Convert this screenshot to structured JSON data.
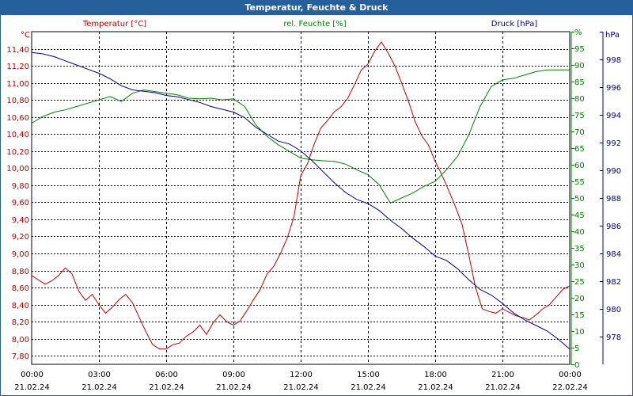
{
  "window": {
    "title": "Temperatur, Feuchte & Druck"
  },
  "colors": {
    "temperature": "#c00000",
    "humidity": "#008000",
    "pressure": "#00008b",
    "grid": "#000000",
    "title_bar": "#26609c"
  },
  "chart_data": {
    "type": "line",
    "title": "Temperatur, Feuchte & Druck",
    "legend_placement": "top",
    "x_range": [
      0,
      24
    ],
    "x_ticks": [
      {
        "time": "00:00",
        "date": "21.02.24"
      },
      {
        "time": "03:00",
        "date": "21.02.24"
      },
      {
        "time": "06:00",
        "date": "21.02.24"
      },
      {
        "time": "09:00",
        "date": "21.02.24"
      },
      {
        "time": "12:00",
        "date": "21.02.24"
      },
      {
        "time": "15:00",
        "date": "21.02.24"
      },
      {
        "time": "18:00",
        "date": "21.02.24"
      },
      {
        "time": "21:00",
        "date": "21.02.24"
      },
      {
        "time": "00:00",
        "date": "22.02.24"
      }
    ],
    "axes": {
      "temperature": {
        "unit": "°C",
        "range": [
          7.7,
          11.6
        ],
        "ticks": [
          "7,80",
          "8,00",
          "8,20",
          "8,40",
          "8,60",
          "8,80",
          "9,00",
          "9,20",
          "9,40",
          "9,60",
          "9,80",
          "10,00",
          "10,20",
          "10,40",
          "10,60",
          "10,80",
          "11,00",
          "11,20",
          "11,40"
        ],
        "tick_values": [
          7.8,
          8.0,
          8.2,
          8.4,
          8.6,
          8.8,
          9.0,
          9.2,
          9.4,
          9.6,
          9.8,
          10.0,
          10.2,
          10.4,
          10.6,
          10.8,
          11.0,
          11.2,
          11.4
        ]
      },
      "humidity": {
        "unit": "%",
        "range": [
          0,
          100
        ],
        "ticks": [
          "0",
          "5",
          "10",
          "15",
          "20",
          "25",
          "30",
          "35",
          "40",
          "45",
          "50",
          "55",
          "60",
          "65",
          "70",
          "75",
          "80",
          "85",
          "90",
          "95",
          "%"
        ],
        "tick_values": [
          0,
          5,
          10,
          15,
          20,
          25,
          30,
          35,
          40,
          45,
          50,
          55,
          60,
          65,
          70,
          75,
          80,
          85,
          90,
          95,
          100
        ]
      },
      "pressure": {
        "unit": "hPa",
        "range": [
          976,
          1000
        ],
        "ticks": [
          "978",
          "980",
          "982",
          "984",
          "986",
          "988",
          "990",
          "992",
          "994",
          "996",
          "998",
          "hPa"
        ],
        "tick_values": [
          978,
          980,
          982,
          984,
          986,
          988,
          990,
          992,
          994,
          996,
          998,
          1000
        ]
      }
    },
    "series": [
      {
        "name": "Temperatur [°C]",
        "axis": "temperature",
        "x": [
          0,
          0.3,
          0.6,
          0.9,
          1.2,
          1.5,
          1.8,
          2.1,
          2.4,
          2.7,
          3.0,
          3.3,
          3.6,
          3.9,
          4.2,
          4.5,
          4.8,
          5.1,
          5.4,
          5.7,
          6.0,
          6.3,
          6.6,
          6.9,
          7.2,
          7.5,
          7.8,
          8.1,
          8.4,
          8.7,
          9.0,
          9.3,
          9.6,
          9.9,
          10.2,
          10.5,
          10.8,
          11.1,
          11.4,
          11.7,
          12.0,
          12.3,
          12.6,
          12.9,
          13.2,
          13.5,
          13.8,
          14.1,
          14.4,
          14.7,
          15.0,
          15.3,
          15.6,
          15.9,
          16.2,
          16.5,
          16.8,
          17.1,
          17.4,
          17.7,
          18.0,
          18.3,
          18.6,
          18.9,
          19.2,
          19.5,
          19.8,
          20.1,
          20.4,
          20.7,
          21.0,
          21.3,
          21.6,
          21.9,
          22.2,
          22.5,
          22.8,
          23.1,
          23.4,
          23.7,
          24.0
        ],
        "values": [
          8.74,
          8.69,
          8.64,
          8.68,
          8.74,
          8.83,
          8.76,
          8.56,
          8.45,
          8.52,
          8.4,
          8.3,
          8.37,
          8.46,
          8.52,
          8.42,
          8.25,
          8.08,
          7.93,
          7.88,
          7.88,
          7.93,
          7.95,
          8.03,
          8.08,
          8.16,
          8.05,
          8.19,
          8.28,
          8.2,
          8.16,
          8.21,
          8.33,
          8.46,
          8.58,
          8.76,
          8.85,
          9.0,
          9.18,
          9.43,
          9.91,
          10.05,
          10.28,
          10.47,
          10.56,
          10.66,
          10.72,
          10.82,
          10.98,
          11.15,
          11.22,
          11.37,
          11.48,
          11.35,
          11.2,
          11.0,
          10.79,
          10.55,
          10.38,
          10.27,
          10.08,
          9.92,
          9.74,
          9.55,
          9.34,
          8.98,
          8.6,
          8.35,
          8.32,
          8.3,
          8.35,
          8.31,
          8.27,
          8.25,
          8.22,
          8.28,
          8.35,
          8.4,
          8.49,
          8.58,
          8.62
        ]
      },
      {
        "name": "rel. Feuchte [%]",
        "axis": "humidity",
        "x": [
          0,
          0.5,
          1.0,
          1.5,
          2.0,
          2.5,
          3.0,
          3.5,
          4.0,
          4.5,
          5.0,
          5.5,
          6.0,
          6.5,
          7.0,
          7.5,
          8.0,
          8.5,
          9.0,
          9.5,
          10.0,
          10.5,
          11.0,
          11.5,
          12.0,
          12.5,
          13.0,
          13.5,
          14.0,
          14.5,
          15.0,
          15.5,
          16.0,
          16.5,
          17.0,
          17.5,
          18.0,
          18.5,
          19.0,
          19.5,
          20.0,
          20.5,
          21.0,
          21.5,
          22.0,
          22.5,
          23.0,
          23.5,
          24.0
        ],
        "values": [
          72.5,
          74.5,
          75.8,
          76.5,
          77.5,
          78.5,
          79.5,
          80.5,
          79.0,
          81.5,
          82.5,
          82.0,
          81.5,
          81.0,
          80.0,
          79.8,
          80.0,
          79.5,
          79.8,
          77.5,
          72.0,
          68.5,
          66.0,
          64.0,
          62.0,
          61.5,
          61.2,
          61.0,
          60.2,
          58.5,
          57.0,
          54.0,
          48.5,
          50.0,
          51.5,
          53.5,
          55.0,
          58.5,
          62.5,
          69.0,
          77.5,
          83.5,
          85.5,
          86.0,
          87.0,
          88.0,
          88.5,
          88.5,
          88.5
        ]
      },
      {
        "name": "Druck [hPa]",
        "axis": "pressure",
        "x": [
          0,
          0.5,
          1.0,
          1.5,
          2.0,
          2.5,
          3.0,
          3.5,
          4.0,
          4.5,
          5.0,
          5.5,
          6.0,
          6.5,
          7.0,
          7.5,
          8.0,
          8.5,
          9.0,
          9.5,
          10.0,
          10.5,
          11.0,
          11.5,
          12.0,
          12.5,
          13.0,
          13.5,
          14.0,
          14.5,
          15.0,
          15.5,
          16.0,
          16.5,
          17.0,
          17.5,
          18.0,
          18.5,
          19.0,
          19.5,
          20.0,
          20.5,
          21.0,
          21.5,
          22.0,
          22.5,
          23.0,
          23.5,
          24.0
        ],
        "values": [
          998.5,
          998.4,
          998.2,
          997.9,
          997.6,
          997.3,
          997.0,
          996.6,
          996.1,
          995.8,
          995.7,
          995.6,
          995.4,
          995.3,
          995.1,
          994.9,
          994.6,
          994.4,
          994.2,
          993.8,
          993.1,
          992.6,
          992.1,
          991.9,
          991.4,
          990.7,
          989.9,
          989.1,
          988.4,
          987.9,
          987.6,
          987.1,
          986.4,
          985.8,
          985.1,
          984.5,
          983.8,
          983.5,
          982.9,
          982.1,
          981.4,
          981.0,
          980.4,
          979.7,
          979.2,
          978.8,
          978.4,
          977.8,
          977.1
        ]
      }
    ]
  }
}
